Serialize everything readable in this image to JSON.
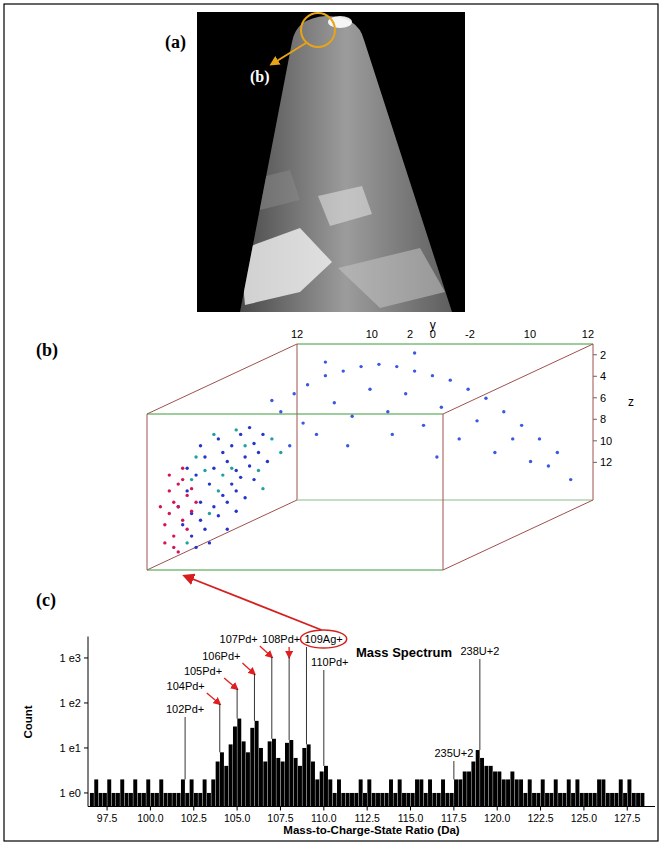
{
  "panel_labels": [
    "(a)",
    "(b)",
    "(c)"
  ],
  "image": {
    "callout": "(b)"
  },
  "chart_data": [
    {
      "type": "scatter",
      "xlim": [
        0,
        100
      ],
      "ylim": [
        0,
        100
      ],
      "y_axis": {
        "title": "y",
        "ticks": [
          "12",
          "10",
          "2",
          "0",
          "-2",
          "10",
          "12"
        ]
      },
      "z_axis": {
        "title": "z",
        "zlim": [
          1,
          15.5
        ],
        "zticks": [
          2,
          4,
          6,
          8,
          10,
          12
        ]
      },
      "series": [
        {
          "color": "#2436c8",
          "x": [
            8,
            10,
            12,
            9,
            14,
            11,
            15,
            13,
            17,
            19,
            16,
            21,
            18,
            20,
            22,
            24,
            12,
            15,
            17,
            19,
            21,
            23,
            10,
            13,
            16,
            18,
            20,
            25,
            26,
            23,
            14,
            11,
            7,
            9,
            12,
            27,
            24,
            22,
            20,
            18
          ],
          "values": [
            20,
            25,
            30,
            35,
            38,
            42,
            45,
            50,
            52,
            55,
            58,
            60,
            48,
            44,
            50,
            56,
            22,
            28,
            33,
            38,
            41,
            46,
            15,
            18,
            24,
            30,
            35,
            52,
            60,
            63,
            12,
            10,
            28,
            45,
            55,
            48,
            40,
            32,
            26,
            18
          ]
        },
        {
          "color": "#d4145a",
          "x": [
            4,
            5,
            6,
            5,
            7,
            6,
            8,
            7,
            9,
            8,
            4,
            6,
            9,
            10,
            5,
            7,
            10,
            3,
            8,
            11
          ],
          "values": [
            20,
            25,
            30,
            35,
            38,
            15,
            22,
            28,
            33,
            40,
            12,
            10,
            18,
            26,
            42,
            8,
            36,
            28,
            45,
            30
          ]
        },
        {
          "color": "#22a0a0",
          "x": [
            10,
            13,
            16,
            19,
            22,
            14,
            17,
            25,
            28,
            11,
            20,
            9,
            15,
            26,
            30
          ],
          "values": [
            40,
            44,
            35,
            45,
            55,
            25,
            42,
            44,
            58,
            50,
            62,
            12,
            60,
            36,
            52
          ]
        },
        {
          "color": "#3a58e0",
          "x": [
            30,
            33,
            36,
            40,
            44,
            48,
            52,
            56,
            60,
            64,
            68,
            72,
            76,
            80,
            84,
            88,
            92,
            35,
            42,
            50,
            58,
            66,
            74,
            82,
            90,
            38,
            46,
            54,
            62,
            70,
            78,
            45,
            55,
            65,
            32,
            86,
            95,
            60,
            40,
            28
          ],
          "values": [
            70,
            78,
            82,
            86,
            88,
            90,
            91,
            90,
            88,
            86,
            84,
            80,
            76,
            70,
            64,
            58,
            52,
            65,
            74,
            80,
            78,
            72,
            66,
            58,
            46,
            60,
            68,
            70,
            64,
            58,
            52,
            55,
            60,
            50,
            55,
            48,
            40,
            96,
            92,
            75
          ]
        }
      ]
    },
    {
      "type": "histogram",
      "title": "Mass Spectrum",
      "x_label": "Mass-to-Charge-State Ratio (Da)",
      "y_label": "Count",
      "log": "y",
      "color": "#000000",
      "xlim": [
        96.4,
        129.1
      ],
      "ylim": [
        0.5,
        3000
      ],
      "xticks": [
        97.5,
        {
          "value": 100,
          "label": "100.0"
        },
        102.5,
        {
          "value": 105,
          "label": "105.0"
        },
        107.5,
        {
          "value": 110,
          "label": "110.0"
        },
        112.5,
        {
          "value": 115,
          "label": "115.0"
        },
        117.5,
        {
          "value": 120,
          "label": "120.0"
        },
        122.5,
        {
          "value": 125,
          "label": "125.0"
        },
        127.5
      ],
      "yticks": [
        {
          "value": 1,
          "label": "1 e0"
        },
        {
          "value": 10,
          "label": "1 e1"
        },
        {
          "value": 100,
          "label": "1 e2"
        },
        {
          "value": 1000,
          "label": "1 e3"
        }
      ],
      "bins": [
        96.5,
        96.75,
        97,
        97.25,
        97.5,
        97.75,
        98,
        98.25,
        98.5,
        98.75,
        99,
        99.25,
        99.5,
        99.75,
        100,
        100.25,
        100.5,
        100.75,
        101,
        101.25,
        101.5,
        101.75,
        102,
        102.25,
        102.5,
        102.75,
        103,
        103.25,
        103.5,
        103.75,
        104,
        104.25,
        104.5,
        104.75,
        105,
        105.25,
        105.5,
        105.75,
        106,
        106.25,
        106.5,
        106.75,
        107,
        107.25,
        107.5,
        107.75,
        108,
        108.25,
        108.5,
        108.75,
        109,
        109.25,
        109.5,
        109.75,
        110,
        110.25,
        110.5,
        110.75,
        111,
        111.25,
        111.5,
        111.75,
        112,
        112.25,
        112.5,
        112.75,
        113,
        113.25,
        113.5,
        113.75,
        114,
        114.25,
        114.5,
        114.75,
        115,
        115.25,
        115.5,
        115.75,
        116,
        116.25,
        116.5,
        116.75,
        117,
        117.25,
        117.5,
        117.75,
        118,
        118.25,
        118.5,
        118.75,
        119,
        119.25,
        119.5,
        119.75,
        120,
        120.25,
        120.5,
        120.75,
        121,
        121.25,
        121.5,
        121.75,
        122,
        122.25,
        122.5,
        122.75,
        123,
        123.25,
        123.5,
        123.75,
        124,
        124.25,
        124.5,
        124.75,
        125,
        125.25,
        125.5,
        125.75,
        126,
        126.25,
        126.5,
        126.75,
        127,
        127.25,
        127.5,
        127.75,
        128,
        128.25,
        128.5
      ],
      "values": [
        1,
        2,
        1,
        1,
        2,
        1,
        1,
        2,
        1,
        1,
        2,
        1,
        1,
        2,
        1,
        1,
        2,
        1,
        1,
        1,
        1,
        2,
        1,
        2,
        1,
        1,
        2,
        1,
        2,
        5,
        8,
        4,
        12,
        30,
        45,
        14,
        8,
        28,
        40,
        10,
        5,
        14,
        16,
        6,
        5,
        13,
        15,
        6,
        4,
        10,
        12,
        5,
        2,
        3,
        4,
        2,
        1,
        2,
        1,
        1,
        1,
        1,
        2,
        1,
        2,
        1,
        1,
        1,
        1,
        2,
        1,
        2,
        1,
        1,
        1,
        2,
        2,
        1,
        2,
        1,
        1,
        2,
        1,
        1,
        2,
        2,
        3,
        3,
        5,
        9,
        6,
        4,
        4,
        3,
        3,
        2,
        2,
        3,
        2,
        2,
        1,
        2,
        1,
        1,
        2,
        1,
        1,
        2,
        1,
        1,
        2,
        1,
        2,
        1,
        1,
        1,
        1,
        2,
        2,
        1,
        1,
        1,
        2,
        1,
        2,
        1,
        1,
        1
      ],
      "annotations": [
        {
          "x": 102,
          "text": "102Pd+"
        },
        {
          "x": 104,
          "text": "104Pd+",
          "color": "#e02020"
        },
        {
          "x": 105,
          "text": "105Pd+",
          "color": "#e02020"
        },
        {
          "x": 106,
          "text": "106Pd+",
          "color": "#e02020"
        },
        {
          "x": 107,
          "text": "107Pd+",
          "color": "#e02020"
        },
        {
          "x": 108,
          "text": "108Pd+",
          "color": "#e02020"
        },
        {
          "x": 109,
          "text": "109Ag+",
          "marker": "circle"
        },
        {
          "x": 110,
          "text": "110Pd+"
        },
        {
          "x": 117.5,
          "text": "235U+2"
        },
        {
          "x": 119,
          "text": "238U+2"
        }
      ]
    }
  ]
}
